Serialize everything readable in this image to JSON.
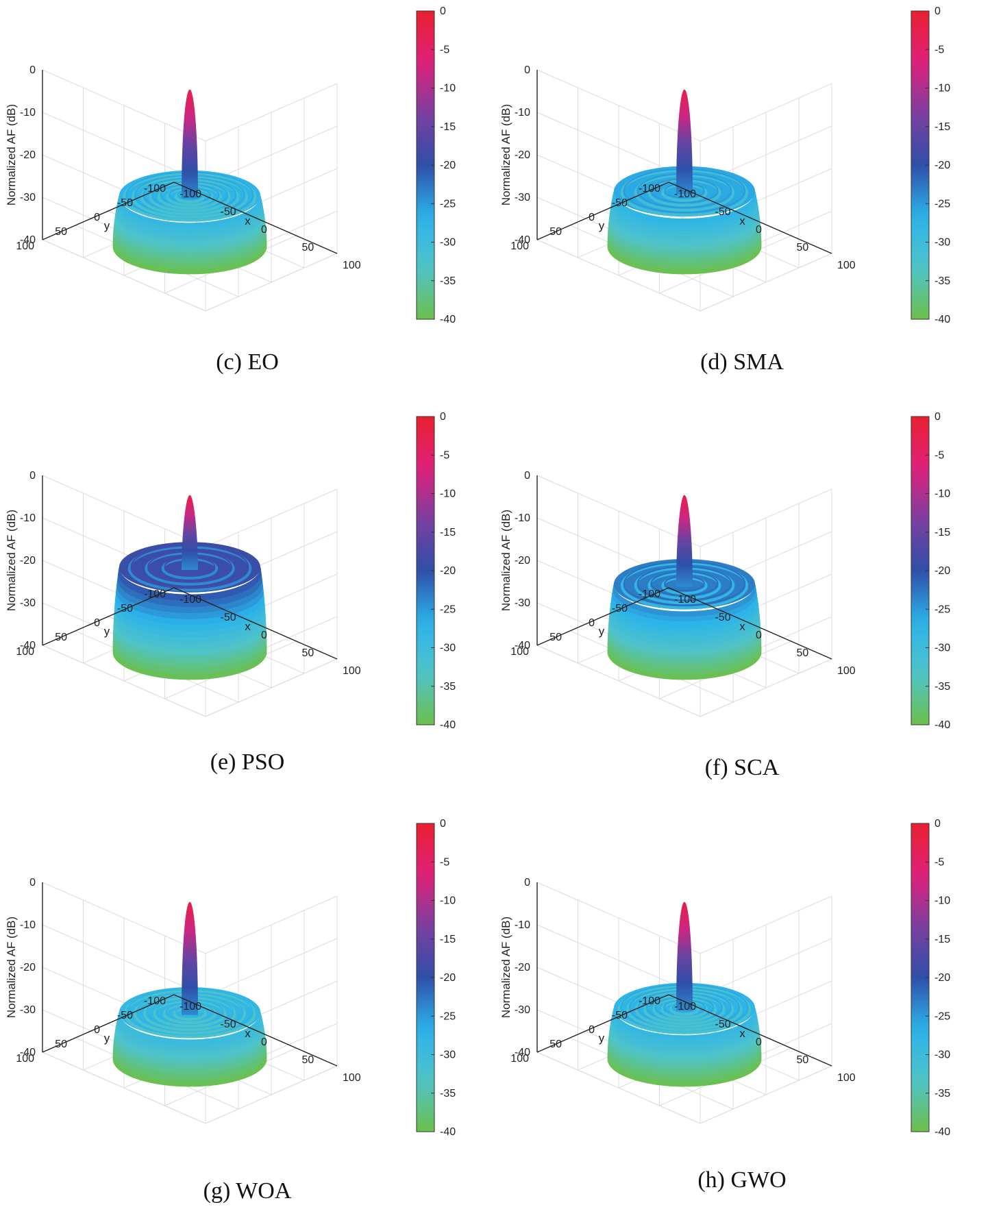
{
  "figure": {
    "colormap": [
      "#6cc04a",
      "#4fc3c9",
      "#2bb3ea",
      "#2f4fa8",
      "#7b3fa0",
      "#e0207a",
      "#e8202f"
    ],
    "colorbar_ticks": [
      "0",
      "-5",
      "-10",
      "-15",
      "-20",
      "-25",
      "-30",
      "-35",
      "-40"
    ]
  },
  "chart_data": [
    {
      "id": "eo",
      "type": "surface",
      "title": "(c) EO",
      "zlabel": "Normalized AF (dB)",
      "xlabel": "x",
      "ylabel": "y",
      "xlim": [
        -100,
        100
      ],
      "ylim": [
        -100,
        100
      ],
      "zlim": [
        -40,
        0
      ],
      "xticks": [
        "-100",
        "-50",
        "0",
        "50",
        "100"
      ],
      "yticks": [
        "100",
        "50",
        "0",
        "-50",
        "-100"
      ],
      "zticks": [
        "0",
        "-10",
        "-20",
        "-30",
        "-40"
      ],
      "clim": [
        -40,
        0
      ],
      "peak_db": 0,
      "sidelobe_db": -28,
      "ring_count": 7
    },
    {
      "id": "sma",
      "type": "surface",
      "title": "(d) SMA",
      "zlabel": "Normalized AF (dB)",
      "xlabel": "x",
      "ylabel": "y",
      "xlim": [
        -100,
        100
      ],
      "ylim": [
        -100,
        100
      ],
      "zlim": [
        -40,
        0
      ],
      "xticks": [
        "-100",
        "-50",
        "0",
        "50",
        "100"
      ],
      "yticks": [
        "100",
        "50",
        "0",
        "-50",
        "-100"
      ],
      "zticks": [
        "0",
        "-10",
        "-20",
        "-30",
        "-40"
      ],
      "clim": [
        -40,
        0
      ],
      "peak_db": 0,
      "sidelobe_db": -27,
      "ring_count": 4
    },
    {
      "id": "pso",
      "type": "surface",
      "title": "(e) PSO",
      "zlabel": "Normalized AF (dB)",
      "xlabel": "x",
      "ylabel": "y",
      "xlim": [
        -100,
        100
      ],
      "ylim": [
        -100,
        100
      ],
      "zlim": [
        -40,
        0
      ],
      "xticks": [
        "-100",
        "-50",
        "0",
        "50",
        "100"
      ],
      "yticks": [
        "100",
        "50",
        "0",
        "-50",
        "-100"
      ],
      "zticks": [
        "0",
        "-10",
        "-20",
        "-30",
        "-40"
      ],
      "clim": [
        -40,
        0
      ],
      "peak_db": 0,
      "sidelobe_db": -20,
      "ring_count": 3
    },
    {
      "id": "sca",
      "type": "surface",
      "title": "(f) SCA",
      "zlabel": "Normalized AF (dB)",
      "xlabel": "x",
      "ylabel": "y",
      "xlim": [
        -100,
        100
      ],
      "ylim": [
        -100,
        100
      ],
      "zlim": [
        -40,
        0
      ],
      "xticks": [
        "-100",
        "-50",
        "0",
        "50",
        "100"
      ],
      "yticks": [
        "100",
        "50",
        "0",
        "-50",
        "-100"
      ],
      "zticks": [
        "0",
        "-10",
        "-20",
        "-30",
        "-40"
      ],
      "clim": [
        -40,
        0
      ],
      "peak_db": 0,
      "sidelobe_db": -24,
      "ring_count": 4
    },
    {
      "id": "woa",
      "type": "surface",
      "title": "(g) WOA",
      "zlabel": "Normalized AF (dB)",
      "xlabel": "x",
      "ylabel": "y",
      "xlim": [
        -100,
        100
      ],
      "ylim": [
        -100,
        100
      ],
      "zlim": [
        -40,
        0
      ],
      "xticks": [
        "-100",
        "-50",
        "0",
        "50",
        "100"
      ],
      "yticks": [
        "100",
        "50",
        "0",
        "-50",
        "-100"
      ],
      "zticks": [
        "0",
        "-10",
        "-20",
        "-30",
        "-40"
      ],
      "clim": [
        -40,
        0
      ],
      "peak_db": 0,
      "sidelobe_db": -29,
      "ring_count": 6
    },
    {
      "id": "gwo",
      "type": "surface",
      "title": "(h) GWO",
      "zlabel": "Normalized AF (dB)",
      "xlabel": "x",
      "ylabel": "y",
      "xlim": [
        -100,
        100
      ],
      "ylim": [
        -100,
        100
      ],
      "zlim": [
        -40,
        0
      ],
      "xticks": [
        "-100",
        "-50",
        "0",
        "50",
        "100"
      ],
      "yticks": [
        "100",
        "50",
        "0",
        "-50",
        "-100"
      ],
      "zticks": [
        "0",
        "-10",
        "-20",
        "-30",
        "-40"
      ],
      "clim": [
        -40,
        0
      ],
      "peak_db": 0,
      "sidelobe_db": -28,
      "ring_count": 7
    }
  ]
}
